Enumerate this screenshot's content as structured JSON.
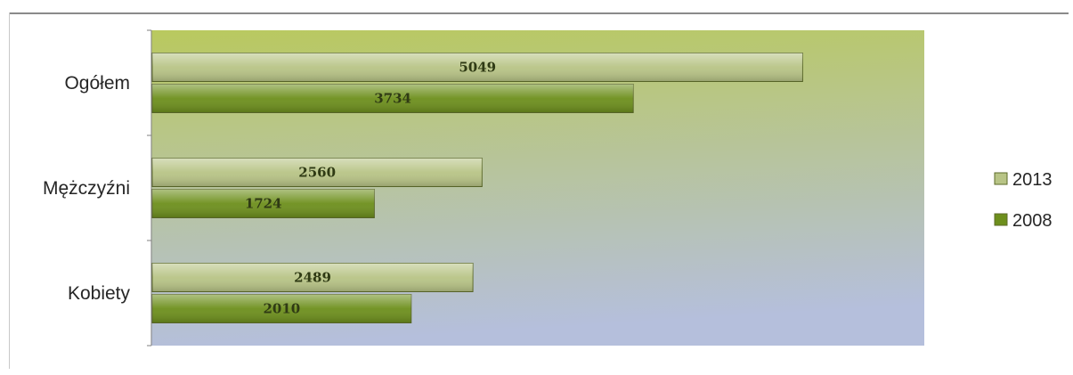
{
  "chart_data": {
    "type": "bar",
    "orientation": "horizontal",
    "title": "",
    "xlabel": "",
    "ylabel": "",
    "categories": [
      "Ogółem",
      "Mężczyźni",
      "Kobiety"
    ],
    "series": [
      {
        "name": "2013",
        "values": [
          5049,
          2560,
          2489
        ],
        "color": "#b8c486"
      },
      {
        "name": "2008",
        "values": [
          3734,
          1724,
          2010
        ],
        "color": "#6d8f1c"
      }
    ],
    "xlim": [
      0,
      6000
    ],
    "grid": false,
    "data_labels": true,
    "legend_position": "right",
    "plot_background": [
      "#b9c95e",
      "#b5bfdc"
    ]
  }
}
